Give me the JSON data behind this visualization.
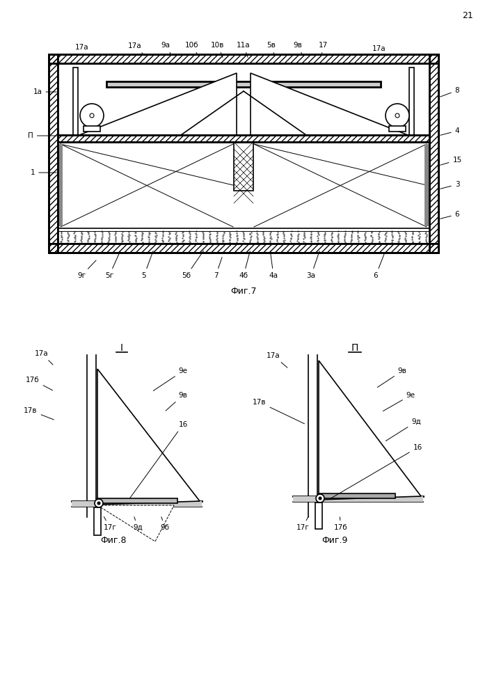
{
  "page_number": "21",
  "fig7_caption": "Фиг.7",
  "fig8_caption": "Фиг.8",
  "fig9_caption": "Фиг.9",
  "section_I": "I",
  "section_II": "П",
  "lc": "#000000",
  "bg": "#ffffff"
}
